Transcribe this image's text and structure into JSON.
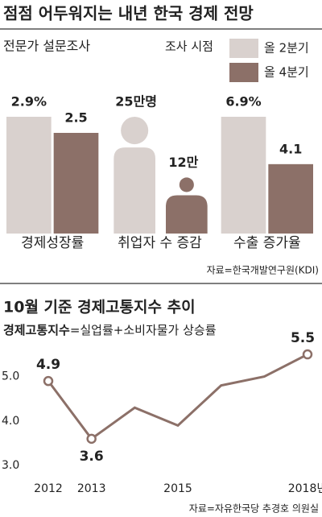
{
  "chart_data": [
    {
      "type": "bar",
      "title": "점점 어두워지는 내년 한국 경제 전망",
      "subtitle": "전문가 설문조사",
      "legend_title": "조사 시점",
      "categories": [
        "경제성장률",
        "취업자 수 증감",
        "수출 증가율"
      ],
      "mark_shapes": [
        "bar",
        "person",
        "bar"
      ],
      "series": [
        {
          "name": "올 2분기",
          "color": "#d9d1ce",
          "values": [
            2.9,
            25,
            6.9
          ],
          "value_labels": [
            "2.9%",
            "25만명",
            "6.9%"
          ]
        },
        {
          "name": "올 4분기",
          "color": "#8c7068",
          "values": [
            2.5,
            12,
            4.1
          ],
          "value_labels": [
            "2.5",
            "12만",
            "4.1"
          ]
        }
      ],
      "source": "자료=한국개발연구원(KDI)"
    },
    {
      "type": "line",
      "title": "10월 기준 경제고통지수 추이",
      "subtitle_term": "경제고통지수",
      "subtitle_definition": "=실업률+소비자물가 상승률",
      "categories": [
        "2012",
        "2013",
        null,
        "2015",
        null,
        null,
        "2018년"
      ],
      "series": [
        {
          "name": "경제고통지수",
          "color": "#8c7068",
          "values": [
            4.9,
            3.6,
            4.3,
            3.9,
            4.8,
            5.0,
            5.5
          ],
          "value_labels": [
            "4.9",
            "3.6",
            null,
            null,
            null,
            null,
            "5.5"
          ]
        }
      ],
      "ylim": [
        3,
        5.7
      ],
      "yticks": [
        {
          "value": 3,
          "label": "3.0"
        },
        {
          "value": 4,
          "label": "4.0"
        },
        {
          "value": 5,
          "label": "5.0"
        }
      ],
      "grid": false,
      "source": "자료=자유한국당 추경호 의원실"
    }
  ]
}
